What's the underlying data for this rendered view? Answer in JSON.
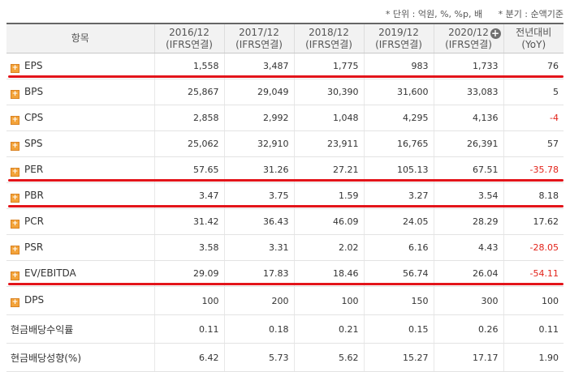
{
  "note": {
    "unit": "* 단위 : 억원, %, %p, 배",
    "quarter": "* 분기 : 순액기준"
  },
  "header": {
    "item": "항목",
    "years": [
      {
        "year": "2016/12",
        "basis": "(IFRS연결)"
      },
      {
        "year": "2017/12",
        "basis": "(IFRS연결)"
      },
      {
        "year": "2018/12",
        "basis": "(IFRS연결)"
      },
      {
        "year": "2019/12",
        "basis": "(IFRS연결)"
      },
      {
        "year": "2020/12",
        "basis": "(IFRS연결)"
      }
    ],
    "yoy_line1": "전년대비",
    "yoy_line2": "(YoY)",
    "add_symbol": "+"
  },
  "rows": [
    {
      "label": "EPS",
      "expandable": true,
      "values": [
        "1,558",
        "3,487",
        "1,775",
        "983",
        "1,733"
      ],
      "yoy": "76",
      "yoy_negative": false
    },
    {
      "label": "BPS",
      "expandable": true,
      "values": [
        "25,867",
        "29,049",
        "30,390",
        "31,600",
        "33,083"
      ],
      "yoy": "5",
      "yoy_negative": false
    },
    {
      "label": "CPS",
      "expandable": true,
      "values": [
        "2,858",
        "2,992",
        "1,048",
        "4,295",
        "4,136"
      ],
      "yoy": "-4",
      "yoy_negative": true
    },
    {
      "label": "SPS",
      "expandable": true,
      "values": [
        "25,062",
        "32,910",
        "23,911",
        "16,765",
        "26,391"
      ],
      "yoy": "57",
      "yoy_negative": false
    },
    {
      "label": "PER",
      "expandable": true,
      "values": [
        "57.65",
        "31.26",
        "27.21",
        "105.13",
        "67.51"
      ],
      "yoy": "-35.78",
      "yoy_negative": true
    },
    {
      "label": "PBR",
      "expandable": true,
      "values": [
        "3.47",
        "3.75",
        "1.59",
        "3.27",
        "3.54"
      ],
      "yoy": "8.18",
      "yoy_negative": false
    },
    {
      "label": "PCR",
      "expandable": true,
      "values": [
        "31.42",
        "36.43",
        "46.09",
        "24.05",
        "28.29"
      ],
      "yoy": "17.62",
      "yoy_negative": false
    },
    {
      "label": "PSR",
      "expandable": true,
      "values": [
        "3.58",
        "3.31",
        "2.02",
        "6.16",
        "4.43"
      ],
      "yoy": "-28.05",
      "yoy_negative": true
    },
    {
      "label": "EV/EBITDA",
      "expandable": true,
      "values": [
        "29.09",
        "17.83",
        "18.46",
        "56.74",
        "26.04"
      ],
      "yoy": "-54.11",
      "yoy_negative": true
    },
    {
      "label": "DPS",
      "expandable": true,
      "values": [
        "100",
        "200",
        "100",
        "150",
        "300"
      ],
      "yoy": "100",
      "yoy_negative": false
    },
    {
      "label": "현금배당수익률",
      "expandable": false,
      "values": [
        "0.11",
        "0.18",
        "0.21",
        "0.15",
        "0.26"
      ],
      "yoy": "0.11",
      "yoy_negative": false
    },
    {
      "label": "현금배당성향(%)",
      "expandable": false,
      "values": [
        "6.42",
        "5.73",
        "5.62",
        "15.27",
        "17.17"
      ],
      "yoy": "1.90",
      "yoy_negative": false
    }
  ],
  "highlighted_rows": [
    "EPS",
    "PER",
    "PBR",
    "EV/EBITDA"
  ],
  "colors": {
    "highlight_line": "#e3141a",
    "negative": "#e2231a",
    "expand_icon": "#f3a33a"
  }
}
